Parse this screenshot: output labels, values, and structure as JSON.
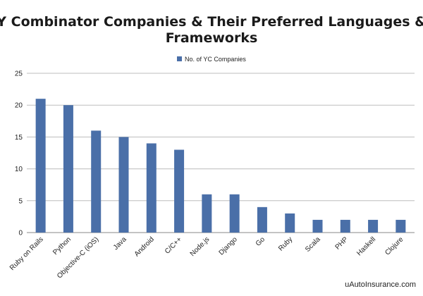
{
  "chart_data": {
    "type": "bar",
    "title_lines": [
      "Y Combinator Companies & Their Preferred Languages &",
      "Frameworks"
    ],
    "categories": [
      "Ruby on Rails",
      "Python",
      "Objective-C (iOS)",
      "Java",
      "Android",
      "C/C++",
      "Node.js",
      "Django",
      "Go",
      "Ruby",
      "Scala",
      "PHP",
      "Haskell",
      "Clojure"
    ],
    "series": [
      {
        "name": "No. of YC Companies",
        "values": [
          21,
          20,
          16,
          15,
          14,
          13,
          6,
          6,
          4,
          3,
          2,
          2,
          2,
          2
        ],
        "color": "#4a6fa8"
      }
    ],
    "yticks": [
      0,
      5,
      10,
      15,
      20,
      25
    ],
    "ylim": [
      0,
      25
    ],
    "grid": true,
    "legend_position": "top-center",
    "credit": "uAutoInsurance.com"
  }
}
